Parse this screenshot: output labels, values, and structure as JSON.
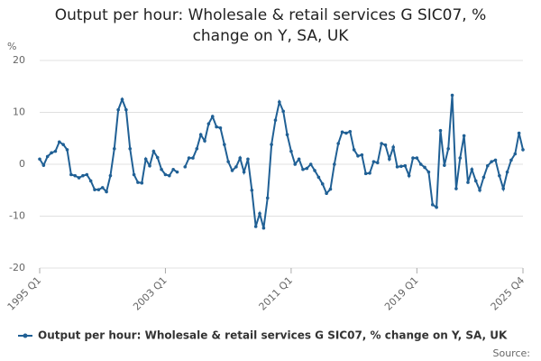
{
  "chart_data": {
    "type": "line",
    "title": "Output per hour: Wholesale & retail services G SIC07, % change on Y, SA, UK",
    "y_label": "%",
    "source": "Source:",
    "categories": [
      "1995 Q1",
      null,
      null,
      null,
      null,
      null,
      null,
      null,
      null,
      null,
      null,
      null,
      null,
      null,
      null,
      null,
      null,
      null,
      null,
      null,
      null,
      null,
      null,
      null,
      null,
      null,
      null,
      null,
      null,
      null,
      null,
      null,
      "2003 Q1",
      null,
      null,
      null,
      null,
      null,
      null,
      null,
      null,
      null,
      null,
      null,
      null,
      null,
      null,
      null,
      null,
      null,
      null,
      null,
      null,
      null,
      null,
      null,
      null,
      null,
      null,
      null,
      null,
      null,
      null,
      null,
      "2011 Q1",
      null,
      null,
      null,
      null,
      null,
      null,
      null,
      null,
      null,
      null,
      null,
      null,
      null,
      null,
      null,
      null,
      null,
      null,
      null,
      null,
      null,
      null,
      null,
      null,
      null,
      null,
      null,
      null,
      null,
      null,
      null,
      "2019 Q1",
      null,
      null,
      null,
      null,
      null,
      null,
      null,
      null,
      null,
      null,
      null,
      null,
      null,
      null,
      null,
      null,
      null,
      null,
      null,
      null,
      null,
      null,
      null,
      null,
      null,
      null,
      "2025 Q4"
    ],
    "series": [
      {
        "name": "Output per hour: Wholesale & retail services G SIC07, % change on Y, SA, UK",
        "color": "#206095",
        "values": [
          1.0,
          -0.2,
          1.5,
          2.2,
          2.5,
          4.3,
          3.8,
          2.8,
          -2.0,
          -2.2,
          -2.6,
          -2.2,
          -2.0,
          -3.2,
          -4.9,
          -4.9,
          -4.5,
          -5.3,
          -2.2,
          3.0,
          10.5,
          12.5,
          10.5,
          3.0,
          -2.0,
          -3.5,
          -3.6,
          1.0,
          -0.3,
          2.5,
          1.3,
          -1.0,
          -2.0,
          -2.2,
          -1.0,
          -1.5,
          null,
          -0.5,
          1.2,
          1.2,
          3.0,
          5.7,
          4.5,
          7.8,
          9.2,
          7.2,
          7.0,
          3.8,
          0.5,
          -1.2,
          -0.5,
          1.2,
          -1.5,
          1.0,
          -5.0,
          -12.0,
          -9.5,
          -12.3,
          -6.5,
          3.8,
          8.5,
          12.0,
          10.2,
          5.7,
          2.5,
          0.0,
          1.0,
          -1.0,
          -0.8,
          0.0,
          -1.2,
          -2.5,
          -3.8,
          -5.6,
          -4.8,
          0.0,
          4.0,
          6.2,
          6.0,
          6.3,
          2.8,
          1.6,
          1.8,
          -1.8,
          -1.7,
          0.5,
          0.3,
          4.0,
          3.7,
          1.0,
          3.3,
          -0.5,
          -0.4,
          -0.3,
          -2.2,
          1.2,
          1.2,
          0.0,
          -0.6,
          -1.5,
          -7.8,
          -8.3,
          6.5,
          -0.2,
          3.0,
          13.3,
          -4.7,
          1.2,
          5.5,
          -3.5,
          -1.0,
          -3.2,
          -5.0,
          -2.5,
          -0.3,
          0.5,
          0.8,
          -2.2,
          -4.7,
          -1.5,
          0.8,
          2.0,
          6.0,
          2.8
        ]
      }
    ],
    "ylim": [
      -20,
      20
    ],
    "yticks": [
      -20,
      -10,
      0,
      10,
      20
    ],
    "grid": true,
    "legend": "bottom"
  }
}
